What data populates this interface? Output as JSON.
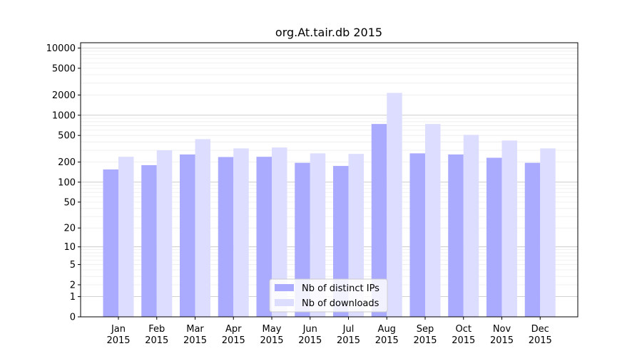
{
  "chart_data": {
    "type": "bar",
    "title": "org.At.tair.db 2015",
    "xlabel": "",
    "ylabel": "",
    "categories": [
      [
        "Jan",
        "2015"
      ],
      [
        "Feb",
        "2015"
      ],
      [
        "Mar",
        "2015"
      ],
      [
        "Apr",
        "2015"
      ],
      [
        "May",
        "2015"
      ],
      [
        "Jun",
        "2015"
      ],
      [
        "Jul",
        "2015"
      ],
      [
        "Aug",
        "2015"
      ],
      [
        "Sep",
        "2015"
      ],
      [
        "Oct",
        "2015"
      ],
      [
        "Nov",
        "2015"
      ],
      [
        "Dec",
        "2015"
      ]
    ],
    "series": [
      {
        "name": "Nb of distinct IPs",
        "color": "#aaaaff",
        "values": [
          155,
          180,
          260,
          238,
          240,
          195,
          175,
          740,
          270,
          260,
          232,
          195
        ]
      },
      {
        "name": "Nb of downloads",
        "color": "#ddddff",
        "values": [
          240,
          300,
          440,
          320,
          330,
          270,
          265,
          2150,
          740,
          510,
          420,
          320
        ]
      }
    ],
    "y_scale": "log(1+y)",
    "ylim": [
      0,
      12000
    ],
    "yticks": [
      0,
      1,
      2,
      5,
      10,
      20,
      50,
      100,
      200,
      500,
      1000,
      2000,
      5000,
      10000
    ],
    "grid": true,
    "legend_position": "bottom-center"
  }
}
